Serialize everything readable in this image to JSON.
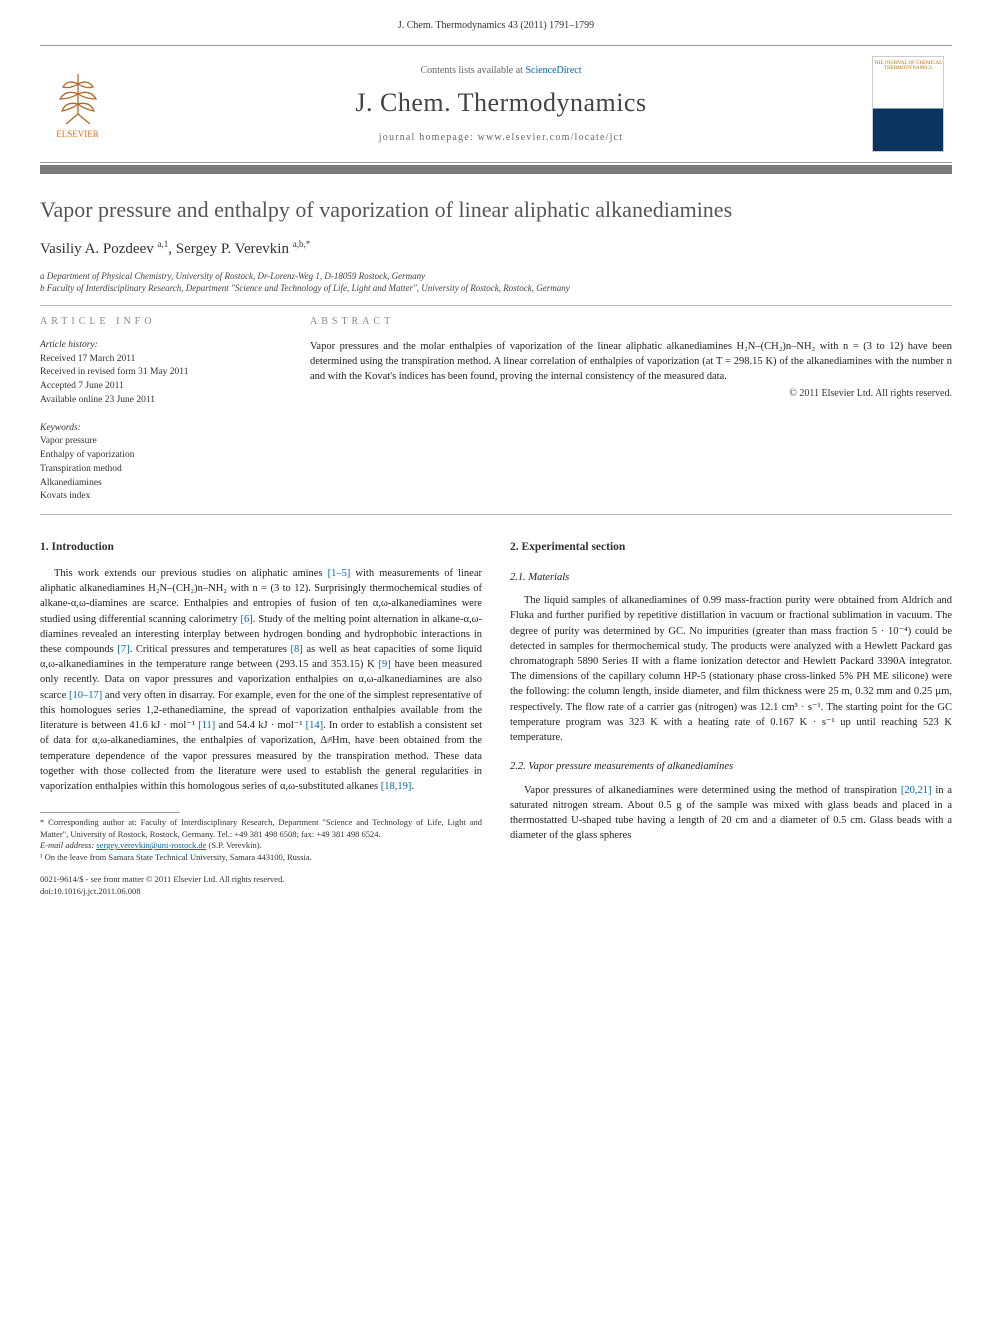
{
  "journal_ref": "J. Chem. Thermodynamics 43 (2011) 1791–1799",
  "header": {
    "contents_prefix": "Contents lists available at ",
    "contents_link": "ScienceDirect",
    "journal_title": "J. Chem. Thermodynamics",
    "homepage_prefix": "journal homepage: ",
    "homepage_url": "www.elsevier.com/locate/jct",
    "publisher_name": "ELSEVIER",
    "cover_caption": "THE JOURNAL OF CHEMICAL THERMODYNAMICS"
  },
  "article": {
    "title": "Vapor pressure and enthalpy of vaporization of linear aliphatic alkanediamines",
    "authors_html": "Vasiliy A. Pozdeev <sup>a,1</sup>, Sergey P. Verevkin <sup>a,b,*</sup>",
    "affiliations": [
      "a Department of Physical Chemistry, University of Rostock, Dr-Lorenz-Weg 1, D-18059 Rostock, Germany",
      "b Faculty of Interdisciplinary Research, Department \"Science and Technology of Life, Light and Matter\", University of Rostock, Rostock, Germany"
    ]
  },
  "info": {
    "heading": "ARTICLE INFO",
    "history_label": "Article history:",
    "history": [
      "Received 17 March 2011",
      "Received in revised form 31 May 2011",
      "Accepted 7 June 2011",
      "Available online 23 June 2011"
    ],
    "keywords_label": "Keywords:",
    "keywords": [
      "Vapor pressure",
      "Enthalpy of vaporization",
      "Transpiration method",
      "Alkanediamines",
      "Kovats index"
    ]
  },
  "abstract": {
    "heading": "ABSTRACT",
    "text": "Vapor pressures and the molar enthalpies of vaporization of the linear aliphatic alkanediamines H₂N–(CH₂)n–NH₂ with n = (3 to 12) have been determined using the transpiration method. A linear correlation of enthalpies of vaporization (at T = 298.15 K) of the alkanediamines with the number n and with the Kovat's indices has been found, proving the internal consistency of the measured data.",
    "copyright": "© 2011 Elsevier Ltd. All rights reserved."
  },
  "sections": {
    "s1_title": "1. Introduction",
    "s1_p1": "This work extends our previous studies on aliphatic amines [1–5] with measurements of linear aliphatic alkanediamines H₂N–(CH₂)n–NH₂ with n = (3 to 12). Surprisingly thermochemical studies of alkane-α,ω-diamines are scarce. Enthalpies and entropies of fusion of ten α,ω-alkanediamines were studied using differential scanning calorimetry [6]. Study of the melting point alternation in alkane-α,ω-diamines revealed an interesting interplay between hydrogen bonding and hydrophobic interactions in these compounds [7]. Critical pressures and temperatures [8] as well as heat capacities of some liquid α,ω-alkanediamines in the temperature range between (293.15 and 353.15) K [9] have been measured only recently. Data on vapor pressures and vaporization enthalpies on α,ω-alkanediamines are also scarce [10–17] and very often in disarray. For example, even for the one of the simplest representative of this homologues series 1,2-ethanediamine, the spread of vaporization enthalpies available from the literature is between 41.6 kJ · mol⁻¹ [11] and 54.4 kJ · mol⁻¹ [14]. In order to establish a consistent set of data for α,ω-alkanediamines, the enthalpies of vaporization, ΔₗᵍHm, have been obtained from the temperature dependence of the vapor pressures measured by the transpiration method. These data together with those collected from the literature were used to establish the general regularities in vaporization enthalpies within this homologous series of α,ω-substituted alkanes [18,19].",
    "s2_title": "2. Experimental section",
    "s21_title": "2.1. Materials",
    "s21_p1": "The liquid samples of alkanediamines of 0.99 mass-fraction purity were obtained from Aldrich and Fluka and further purified by repetitive distillation in vacuum or fractional sublimation in vacuum. The degree of purity was determined by GC. No impurities (greater than mass fraction 5 · 10⁻⁴) could be detected in samples for thermochemical study. The products were analyzed with a Hewlett Packard gas chromatograph 5890 Series II with a flame ionization detector and Hewlett Packard 3390A integrator. The dimensions of the capillary column HP-5 (stationary phase cross-linked 5% PH ME silicone) were the following: the column length, inside diameter, and film thickness were 25 m, 0.32 mm and 0.25 µm, respectively. The flow rate of a carrier gas (nitrogen) was 12.1 cm³ · s⁻¹. The starting point for the GC temperature program was 323 K with a heating rate of 0.167 K · s⁻¹ up until reaching 523 K temperature.",
    "s22_title": "2.2. Vapor pressure measurements of alkanediamines",
    "s22_p1": "Vapor pressures of alkanediamines were determined using the method of transpiration [20,21] in a saturated nitrogen stream. About 0.5 g of the sample was mixed with glass beads and placed in a thermostatted U-shaped tube having a length of 20 cm and a diameter of 0.5 cm. Glass beads with a diameter of the glass spheres"
  },
  "footnotes": {
    "corr": "* Corresponding author at: Faculty of Interdisciplinary Research, Department \"Science and Technology of Life, Light and Matter\", University of Rostock, Rostock, Germany. Tel.: +49 381 498 6508; fax: +49 381 498 6524.",
    "email_label": "E-mail address:",
    "email": "sergey.verevkin@uni-rostock.de",
    "email_who": "(S.P. Verevkin).",
    "leave": "¹ On the leave from Samara State Technical University, Samara 443100, Russia."
  },
  "footer": {
    "issn": "0021-9614/$ - see front matter © 2011 Elsevier Ltd. All rights reserved.",
    "doi": "doi:10.1016/j.jct.2011.06.008"
  },
  "colors": {
    "link": "#0066b3",
    "rule": "#7a7a7a",
    "elsevier_orange": "#e5711c",
    "cover_navy": "#0a335e"
  }
}
